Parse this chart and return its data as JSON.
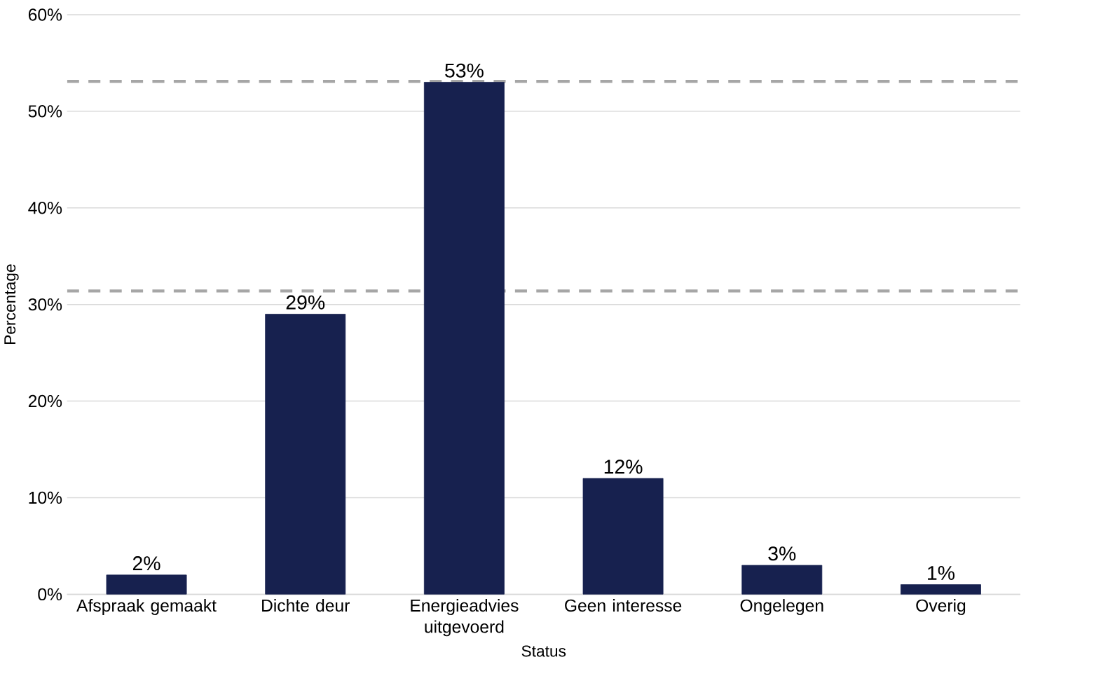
{
  "chart_data": {
    "type": "bar",
    "xlabel": "Status",
    "ylabel": "Percentage",
    "categories": [
      "Afspraak gemaakt",
      "Dichte deur",
      "Energieadvies uitgevoerd",
      "Geen interesse",
      "Ongelegen",
      "Overig"
    ],
    "values": [
      2,
      29,
      53,
      12,
      3,
      1
    ],
    "value_labels": [
      "2%",
      "29%",
      "53%",
      "12%",
      "3%",
      "1%"
    ],
    "color": "#17214f",
    "ylim": [
      0,
      60
    ],
    "yticks": [
      {
        "value": 0,
        "label": "0%"
      },
      {
        "value": 10,
        "label": "10%"
      },
      {
        "value": 20,
        "label": "20%"
      },
      {
        "value": 30,
        "label": "30%"
      },
      {
        "value": 40,
        "label": "40%"
      },
      {
        "value": 50,
        "label": "50%"
      },
      {
        "value": 60,
        "label": "60%"
      }
    ],
    "grid": "y",
    "ref_lines": [
      {
        "axis": "y",
        "value": 53.1,
        "color": "#a6a6a6",
        "line_style": "dashed"
      },
      {
        "axis": "y",
        "value": 31.4,
        "color": "#a6a6a6",
        "line_style": "dashed"
      }
    ]
  }
}
